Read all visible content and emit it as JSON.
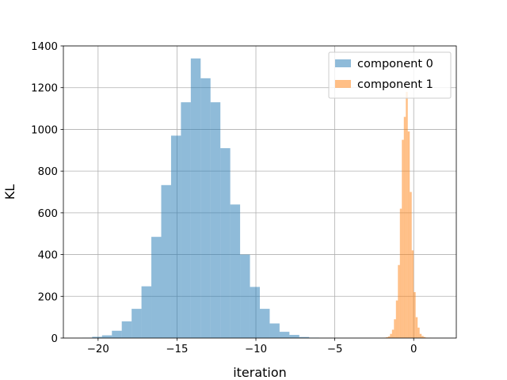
{
  "chart_data": {
    "type": "histogram",
    "title": "",
    "xlabel": "iteration",
    "ylabel": "KL",
    "xlim": [
      -22.2,
      2.7
    ],
    "ylim": [
      0,
      1400
    ],
    "xticks": [
      -20,
      -15,
      -10,
      -5,
      0
    ],
    "yticks": [
      0,
      200,
      400,
      600,
      800,
      1000,
      1200,
      1400
    ],
    "grid": true,
    "legend_position": "top-right",
    "series": [
      {
        "name": "component 0",
        "color": "#1f77b4",
        "opacity": 0.5,
        "bin_start": -21.0,
        "bin_width": 0.625,
        "counts": [
          1,
          6,
          13,
          35,
          80,
          140,
          248,
          485,
          733,
          970,
          1130,
          1340,
          1245,
          1130,
          910,
          640,
          400,
          245,
          140,
          70,
          30,
          15,
          5,
          2
        ]
      },
      {
        "name": "component 1",
        "color": "#ff7f0e",
        "opacity": 0.5,
        "bin_start": -2.0,
        "bin_width": 0.125,
        "counts": [
          1,
          2,
          4,
          8,
          20,
          40,
          90,
          180,
          350,
          620,
          950,
          1060,
          1180,
          990,
          700,
          420,
          220,
          100,
          50,
          20,
          10,
          5,
          2,
          1,
          1,
          0,
          0,
          0
        ]
      }
    ]
  }
}
